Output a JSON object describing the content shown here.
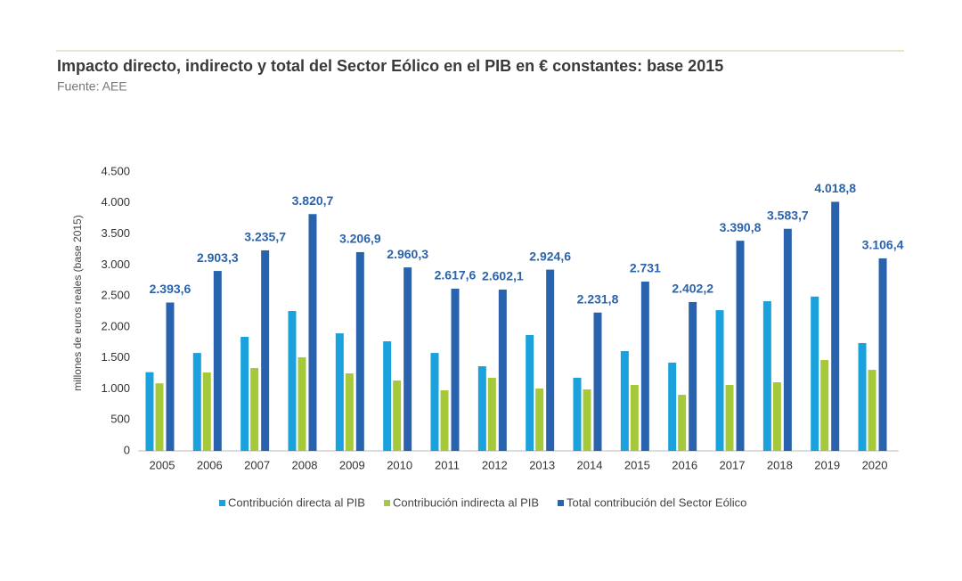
{
  "chart_data": {
    "type": "bar",
    "title": "Impacto directo, indirecto y total del Sector Eólico en el PIB en € constantes: base 2015",
    "subtitle": "Fuente: AEE",
    "y_label": "millones de euros reales (base 2015)",
    "categories": [
      "2005",
      "2006",
      "2007",
      "2008",
      "2009",
      "2010",
      "2011",
      "2012",
      "2013",
      "2014",
      "2015",
      "2016",
      "2017",
      "2018",
      "2019",
      "2020"
    ],
    "series": [
      {
        "name": "Contribución directa al PIB",
        "color": "#1ba1dc",
        "values": [
          1270,
          1580,
          1840,
          2257,
          1897,
          1768,
          1580,
          1366,
          1870,
          1180,
          1610,
          1425,
          2270,
          2415,
          2490,
          1740
        ]
      },
      {
        "name": "Contribución indirecta al PIB",
        "color": "#a6c93b",
        "values": [
          1090,
          1265,
          1337,
          1510,
          1250,
          1136,
          978,
          1180,
          1006,
          992,
          1064,
          905,
          1064,
          1107,
          1466,
          1308
        ]
      },
      {
        "name": "Total contribución del Sector Eólico",
        "color": "#2a63ad",
        "values": [
          2393.6,
          2903.3,
          3235.7,
          3820.7,
          3206.9,
          2960.3,
          2617.6,
          2602.1,
          2924.6,
          2231.8,
          2731,
          2402.2,
          3390.8,
          3583.7,
          4018.8,
          3106.4
        ],
        "value_labels": [
          "2.393,6",
          "2.903,3",
          "3.235,7",
          "3.820,7",
          "3.206,9",
          "2.960,3",
          "2.617,6",
          "2.602,1",
          "2.924,6",
          "2.231,8",
          "2.731",
          "2.402,2",
          "3.390,8",
          "3.583,7",
          "4.018,8",
          "3.106,4"
        ]
      }
    ],
    "ylim": [
      0,
      4500
    ],
    "yticks": [
      0,
      500,
      {
        "value": 1000,
        "label": "1.000"
      },
      {
        "value": 1500,
        "label": "1.500"
      },
      {
        "value": 2000,
        "label": "2.000"
      },
      {
        "value": 2500,
        "label": "2.500"
      },
      {
        "value": 3000,
        "label": "3.000"
      },
      {
        "value": 3500,
        "label": "3.500"
      },
      {
        "value": 4000,
        "label": "4.000"
      },
      {
        "value": 4500,
        "label": "4.500"
      }
    ],
    "grid": false,
    "legend": "bottom"
  }
}
